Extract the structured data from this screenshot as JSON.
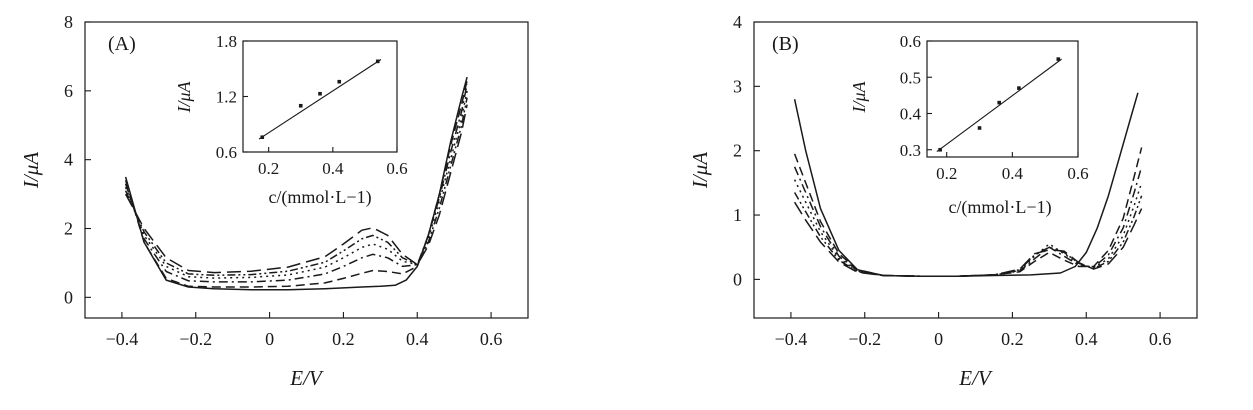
{
  "chart_data": [
    {
      "type": "line",
      "panel_label": "(A)",
      "xlabel": "E/V",
      "ylabel": "I/μA",
      "xlim": [
        -0.5,
        0.7
      ],
      "ylim": [
        -0.6,
        8
      ],
      "xticks": [
        -0.4,
        -0.2,
        0,
        0.2,
        0.4,
        0.6
      ],
      "xtick_labels": [
        "−0.4",
        "−0.2",
        "0",
        "0.2",
        "0.4",
        "0.6"
      ],
      "yticks": [
        0,
        2,
        4,
        6,
        8
      ],
      "ytick_labels": [
        "0",
        "2",
        "4",
        "6",
        "8"
      ],
      "series": [
        {
          "dash": "solid",
          "x": [
            -0.39,
            -0.34,
            -0.28,
            -0.22,
            -0.15,
            -0.05,
            0.05,
            0.15,
            0.25,
            0.3,
            0.34,
            0.37,
            0.4,
            0.43,
            0.46,
            0.49,
            0.52,
            0.535
          ],
          "y": [
            3.5,
            1.6,
            0.5,
            0.3,
            0.25,
            0.22,
            0.22,
            0.25,
            0.3,
            0.32,
            0.35,
            0.5,
            0.9,
            1.8,
            3.0,
            4.5,
            5.8,
            6.4
          ]
        },
        {
          "dash": "dash",
          "x": [
            -0.39,
            -0.34,
            -0.28,
            -0.22,
            -0.15,
            -0.05,
            0.05,
            0.15,
            0.2,
            0.25,
            0.28,
            0.32,
            0.36,
            0.4,
            0.43,
            0.46,
            0.49,
            0.52,
            0.535
          ],
          "y": [
            3.4,
            1.6,
            0.55,
            0.32,
            0.3,
            0.3,
            0.32,
            0.42,
            0.55,
            0.7,
            0.78,
            0.75,
            0.68,
            0.9,
            1.8,
            3.0,
            4.4,
            5.6,
            6.3
          ]
        },
        {
          "dash": "dashdot",
          "x": [
            -0.39,
            -0.34,
            -0.28,
            -0.22,
            -0.15,
            -0.05,
            0.05,
            0.15,
            0.2,
            0.25,
            0.28,
            0.32,
            0.36,
            0.4,
            0.43,
            0.46,
            0.49,
            0.52,
            0.535
          ],
          "y": [
            3.3,
            1.7,
            0.75,
            0.48,
            0.45,
            0.45,
            0.5,
            0.68,
            0.9,
            1.15,
            1.25,
            1.15,
            0.9,
            0.95,
            1.8,
            2.9,
            4.2,
            5.4,
            6.2
          ]
        },
        {
          "dash": "dot",
          "x": [
            -0.39,
            -0.34,
            -0.28,
            -0.22,
            -0.15,
            -0.05,
            0.05,
            0.15,
            0.2,
            0.25,
            0.28,
            0.32,
            0.36,
            0.4,
            0.43,
            0.46,
            0.49,
            0.52,
            0.535
          ],
          "y": [
            3.2,
            1.8,
            0.9,
            0.6,
            0.56,
            0.58,
            0.65,
            0.88,
            1.15,
            1.45,
            1.55,
            1.4,
            1.05,
            0.95,
            1.7,
            2.8,
            4.0,
            5.2,
            6.0
          ]
        },
        {
          "dash": "dashdotdot",
          "x": [
            -0.39,
            -0.34,
            -0.28,
            -0.22,
            -0.15,
            -0.05,
            0.05,
            0.15,
            0.2,
            0.25,
            0.28,
            0.32,
            0.36,
            0.4,
            0.43,
            0.46,
            0.49,
            0.52,
            0.535
          ],
          "y": [
            3.1,
            1.9,
            1.0,
            0.68,
            0.64,
            0.66,
            0.76,
            1.02,
            1.35,
            1.7,
            1.8,
            1.6,
            1.15,
            0.95,
            1.6,
            2.6,
            3.8,
            5.0,
            5.8
          ]
        },
        {
          "dash": "longdash",
          "x": [
            -0.39,
            -0.34,
            -0.28,
            -0.22,
            -0.15,
            -0.05,
            0.05,
            0.15,
            0.2,
            0.25,
            0.28,
            0.32,
            0.36,
            0.4,
            0.43,
            0.46,
            0.49,
            0.52,
            0.535
          ],
          "y": [
            3.0,
            2.0,
            1.15,
            0.78,
            0.72,
            0.76,
            0.88,
            1.18,
            1.55,
            1.95,
            2.02,
            1.8,
            1.25,
            0.95,
            1.5,
            2.4,
            3.6,
            4.8,
            5.6
          ]
        }
      ],
      "inset": {
        "xlabel": "c/(mmol·L−1)",
        "ylabel": "I/μA",
        "xlim": [
          0.12,
          0.6
        ],
        "ylim": [
          0.6,
          1.8
        ],
        "xticks": [
          0.2,
          0.4,
          0.6
        ],
        "xtick_labels": [
          "0.2",
          "0.4",
          "0.6"
        ],
        "yticks": [
          0.6,
          1.2,
          1.8
        ],
        "ytick_labels": [
          "0.6",
          "1.2",
          "1.8"
        ],
        "points": {
          "x": [
            0.18,
            0.3,
            0.36,
            0.42,
            0.54
          ],
          "y": [
            0.76,
            1.1,
            1.23,
            1.36,
            1.58
          ]
        },
        "fit": {
          "x": [
            0.17,
            0.55
          ],
          "y": [
            0.74,
            1.6
          ]
        }
      }
    },
    {
      "type": "line",
      "panel_label": "(B)",
      "xlabel": "E/V",
      "ylabel": "I/μA",
      "xlim": [
        -0.5,
        0.7
      ],
      "ylim": [
        -0.6,
        4
      ],
      "xticks": [
        -0.4,
        -0.2,
        0,
        0.2,
        0.4,
        0.6
      ],
      "xtick_labels": [
        "−0.4",
        "−0.2",
        "0",
        "0.2",
        "0.4",
        "0.6"
      ],
      "yticks": [
        0,
        1,
        2,
        3,
        4
      ],
      "ytick_labels": [
        "0",
        "1",
        "2",
        "3",
        "4"
      ],
      "series": [
        {
          "dash": "solid",
          "x": [
            -0.39,
            -0.36,
            -0.32,
            -0.27,
            -0.22,
            -0.15,
            -0.05,
            0.05,
            0.15,
            0.25,
            0.33,
            0.37,
            0.4,
            0.43,
            0.46,
            0.49,
            0.52,
            0.54
          ],
          "y": [
            2.8,
            2.0,
            1.1,
            0.45,
            0.15,
            0.06,
            0.05,
            0.05,
            0.06,
            0.07,
            0.1,
            0.2,
            0.42,
            0.8,
            1.3,
            1.9,
            2.5,
            2.9
          ]
        },
        {
          "dash": "dash",
          "x": [
            -0.39,
            -0.36,
            -0.32,
            -0.27,
            -0.22,
            -0.15,
            -0.05,
            0.05,
            0.15,
            0.22,
            0.26,
            0.3,
            0.34,
            0.38,
            0.42,
            0.46,
            0.5,
            0.53,
            0.55
          ],
          "y": [
            1.95,
            1.5,
            0.9,
            0.4,
            0.15,
            0.06,
            0.05,
            0.05,
            0.07,
            0.12,
            0.28,
            0.42,
            0.3,
            0.2,
            0.2,
            0.45,
            0.95,
            1.6,
            2.05
          ]
        },
        {
          "dash": "dashdot",
          "x": [
            -0.39,
            -0.36,
            -0.32,
            -0.27,
            -0.22,
            -0.15,
            -0.05,
            0.05,
            0.15,
            0.22,
            0.26,
            0.3,
            0.34,
            0.38,
            0.42,
            0.46,
            0.5,
            0.53,
            0.55
          ],
          "y": [
            1.75,
            1.35,
            0.82,
            0.36,
            0.14,
            0.06,
            0.05,
            0.05,
            0.07,
            0.13,
            0.32,
            0.5,
            0.36,
            0.22,
            0.19,
            0.38,
            0.8,
            1.35,
            1.75
          ]
        },
        {
          "dash": "dot",
          "x": [
            -0.39,
            -0.36,
            -0.32,
            -0.27,
            -0.22,
            -0.15,
            -0.05,
            0.05,
            0.15,
            0.22,
            0.26,
            0.3,
            0.34,
            0.38,
            0.42,
            0.46,
            0.5,
            0.53,
            0.55
          ],
          "y": [
            1.55,
            1.2,
            0.74,
            0.33,
            0.13,
            0.06,
            0.05,
            0.05,
            0.07,
            0.14,
            0.36,
            0.55,
            0.4,
            0.24,
            0.18,
            0.32,
            0.68,
            1.15,
            1.5
          ]
        },
        {
          "dash": "dashdotdot",
          "x": [
            -0.39,
            -0.36,
            -0.32,
            -0.27,
            -0.22,
            -0.15,
            -0.05,
            0.05,
            0.15,
            0.22,
            0.26,
            0.3,
            0.34,
            0.38,
            0.42,
            0.46,
            0.5,
            0.53,
            0.55
          ],
          "y": [
            1.35,
            1.05,
            0.66,
            0.3,
            0.12,
            0.06,
            0.05,
            0.05,
            0.07,
            0.15,
            0.38,
            0.5,
            0.42,
            0.25,
            0.17,
            0.28,
            0.58,
            0.98,
            1.3
          ]
        },
        {
          "dash": "longdash",
          "x": [
            -0.39,
            -0.36,
            -0.32,
            -0.27,
            -0.22,
            -0.15,
            -0.05,
            0.05,
            0.15,
            0.22,
            0.26,
            0.3,
            0.34,
            0.38,
            0.42,
            0.46,
            0.5,
            0.53,
            0.55
          ],
          "y": [
            1.2,
            0.92,
            0.58,
            0.27,
            0.11,
            0.06,
            0.05,
            0.05,
            0.07,
            0.16,
            0.4,
            0.46,
            0.44,
            0.26,
            0.16,
            0.24,
            0.5,
            0.85,
            1.1
          ]
        }
      ],
      "inset": {
        "xlabel": "c/(mmol·L−1)",
        "ylabel": "I/μA",
        "xlim": [
          0.14,
          0.6
        ],
        "ylim": [
          0.28,
          0.6
        ],
        "xticks": [
          0.2,
          0.4,
          0.6
        ],
        "xtick_labels": [
          "0.2",
          "0.4",
          "0.6"
        ],
        "yticks": [
          0.3,
          0.4,
          0.5,
          0.6
        ],
        "ytick_labels": [
          "0.3",
          "0.4",
          "0.5",
          "0.6"
        ],
        "points": {
          "x": [
            0.18,
            0.3,
            0.36,
            0.42,
            0.54
          ],
          "y": [
            0.3,
            0.36,
            0.43,
            0.47,
            0.55
          ]
        },
        "fit": {
          "x": [
            0.17,
            0.55
          ],
          "y": [
            0.295,
            0.55
          ]
        }
      }
    }
  ]
}
